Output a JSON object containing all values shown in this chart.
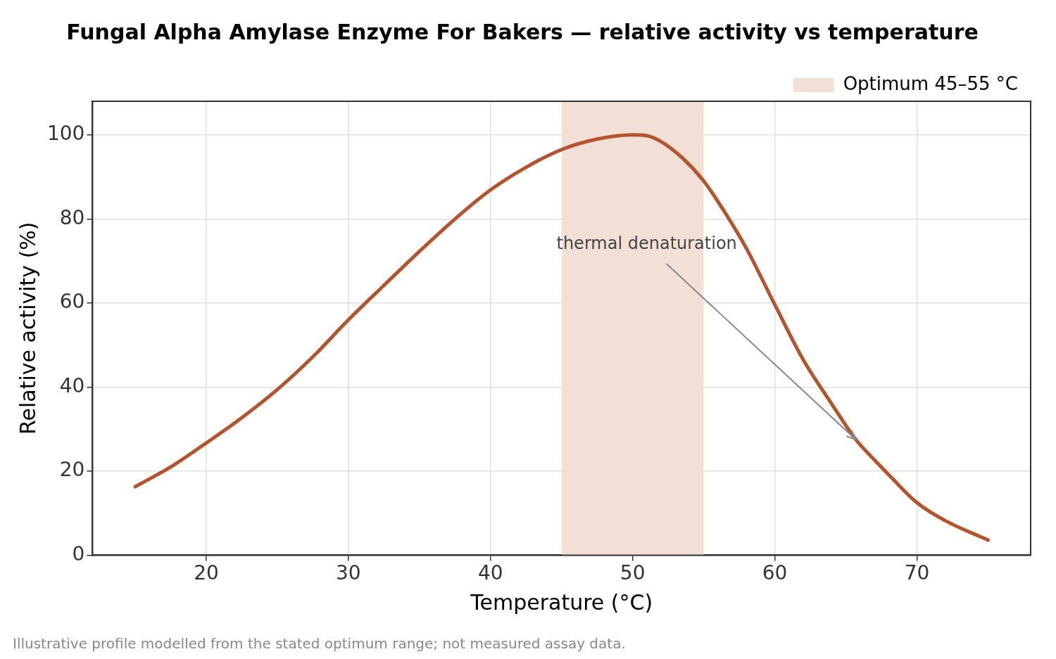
{
  "chart_data": {
    "type": "line",
    "title": "Fungal Alpha Amylase Enzyme For Bakers — relative activity vs temperature",
    "xlabel": "Temperature (°C)",
    "ylabel": "Relative activity (%)",
    "x": [
      15,
      17.5,
      20,
      22.5,
      25,
      27.5,
      30,
      32.5,
      35,
      37.5,
      40,
      42.5,
      45,
      47.5,
      50,
      51,
      52,
      53.5,
      55,
      56.5,
      58,
      60,
      62,
      64,
      65.7,
      67,
      68,
      70,
      72,
      75
    ],
    "series": [
      {
        "color": "#b5532d",
        "values": [
          16.3,
          21,
          26.7,
          32.7,
          39.4,
          47.2,
          56,
          64.2,
          72.3,
          80,
          86.9,
          92.3,
          96.5,
          99,
          100,
          99.8,
          98.4,
          94.5,
          89,
          81.5,
          73,
          59.6,
          46.5,
          36,
          27.5,
          22.7,
          19.2,
          12.5,
          8.2,
          3.6
        ]
      }
    ],
    "xlim": [
      12,
      78
    ],
    "xticks": [
      20,
      30,
      40,
      50,
      60,
      70
    ],
    "ylim": [
      0,
      108
    ],
    "yticks": [
      0,
      20,
      40,
      60,
      80,
      100
    ],
    "bands": [
      {
        "axis": "x",
        "from": 45,
        "to": 55,
        "label": "Optimum 45–55 °C",
        "color": "#f2e0d7"
      }
    ],
    "annotations": [
      {
        "text": "thermal denaturation",
        "x": 65.7,
        "y": 27.5
      },
      "Illustrative profile modelled from the stated optimum range; not measured assay data."
    ],
    "grid": true,
    "legend": "top right",
    "marker": "none",
    "line_style": "solid"
  }
}
